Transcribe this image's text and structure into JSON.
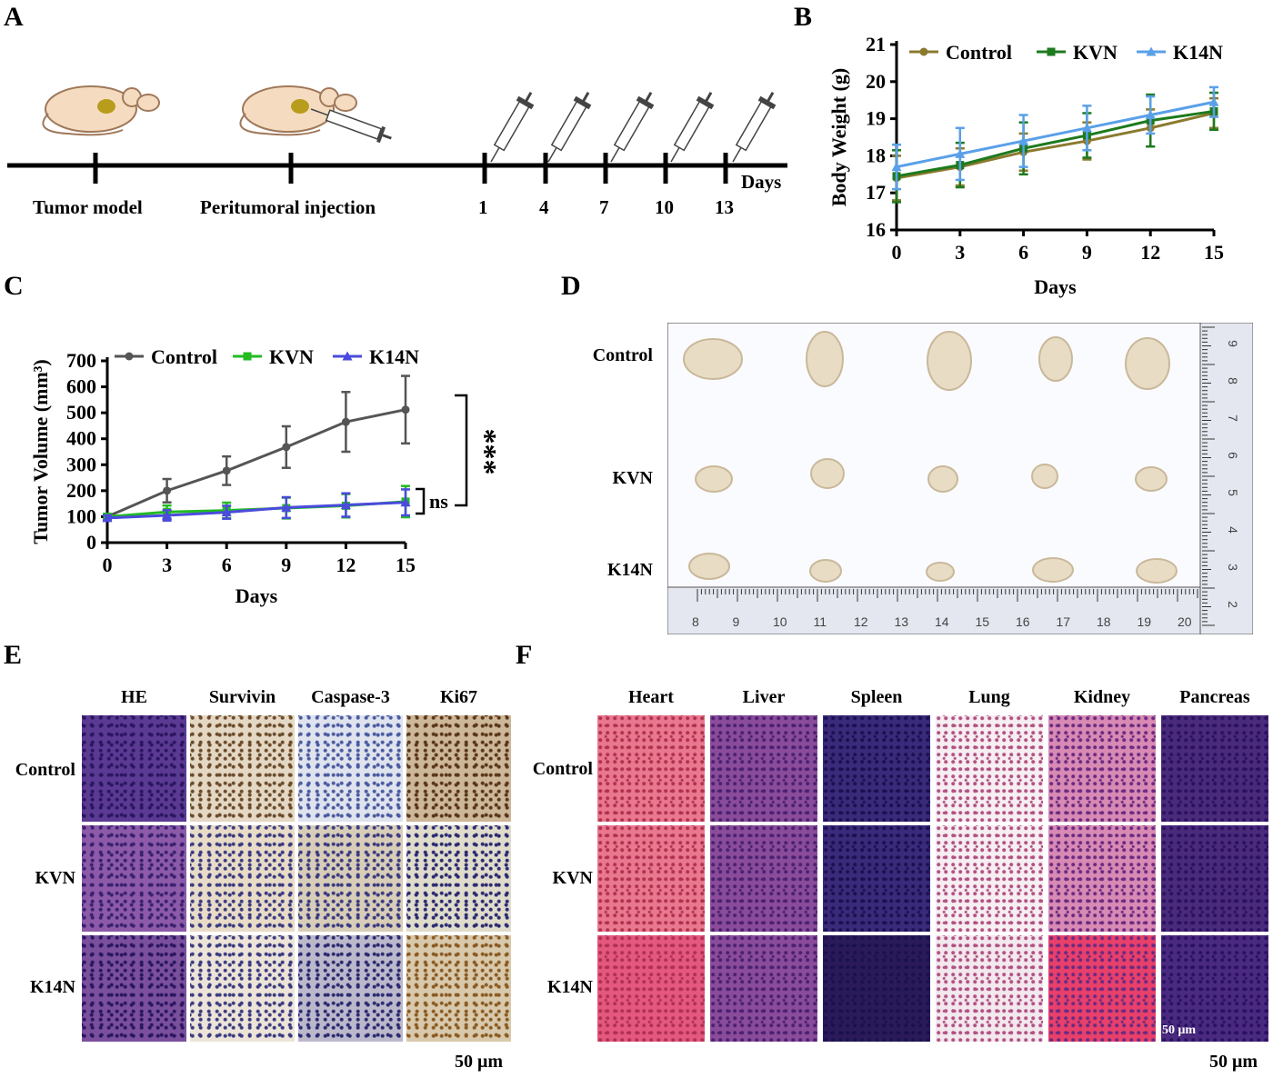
{
  "panels": {
    "A": "A",
    "B": "B",
    "C": "C",
    "D": "D",
    "E": "E",
    "F": "F"
  },
  "panelA": {
    "stages": [
      "Tumor model",
      "Peritumoral injection"
    ],
    "days": [
      "1",
      "4",
      "7",
      "10",
      "13"
    ],
    "axis_unit": "Days"
  },
  "colors": {
    "control_B": "#8b7a2e",
    "kvn_B": "#1e7a1e",
    "k14n_B": "#5aa0e8",
    "control_C": "#555555",
    "kvn_C": "#22bb22",
    "k14n_C": "#4b4bdc",
    "he": "#6a3fa0",
    "ihc_bg": "#e8dccb",
    "heart": "#e06080"
  },
  "chart_data": [
    {
      "type": "line",
      "panel": "B",
      "xlabel": "Days",
      "ylabel": "Body Weight (g)",
      "x": [
        0,
        3,
        6,
        9,
        12,
        15
      ],
      "xticks": [
        "0",
        "3",
        "6",
        "9",
        "12",
        "15"
      ],
      "yticks": [
        "16",
        "17",
        "18",
        "19",
        "20",
        "21"
      ],
      "ylim": [
        16,
        21
      ],
      "xlim": [
        0,
        15
      ],
      "legend_position": "top",
      "series": [
        {
          "name": "Control",
          "marker": "circle",
          "values": [
            17.4,
            17.7,
            18.1,
            18.4,
            18.75,
            19.15
          ],
          "errors": [
            0.6,
            0.5,
            0.5,
            0.5,
            0.5,
            0.4
          ]
        },
        {
          "name": "KVN",
          "marker": "square",
          "values": [
            17.45,
            17.75,
            18.2,
            18.55,
            18.95,
            19.2
          ],
          "errors": [
            0.7,
            0.6,
            0.7,
            0.6,
            0.7,
            0.5
          ]
        },
        {
          "name": "K14N",
          "marker": "triangle",
          "values": [
            17.7,
            18.05,
            18.4,
            18.75,
            19.1,
            19.45
          ],
          "errors": [
            0.6,
            0.7,
            0.7,
            0.6,
            0.5,
            0.4
          ]
        }
      ]
    },
    {
      "type": "line",
      "panel": "C",
      "xlabel": "Days",
      "ylabel": "Tumor Volume (mm³)",
      "x": [
        0,
        3,
        6,
        9,
        12,
        15
      ],
      "xticks": [
        "0",
        "3",
        "6",
        "9",
        "12",
        "15"
      ],
      "yticks": [
        "0",
        "100",
        "200",
        "300",
        "400",
        "500",
        "600",
        "700"
      ],
      "ylim": [
        0,
        700
      ],
      "xlim": [
        0,
        15
      ],
      "legend_position": "top",
      "significance": [
        {
          "label": "***"
        },
        {
          "label": "ns"
        }
      ],
      "series": [
        {
          "name": "Control",
          "marker": "circle",
          "values": [
            100,
            200,
            277,
            368,
            465,
            512
          ],
          "errors": [
            10,
            45,
            55,
            80,
            115,
            130
          ]
        },
        {
          "name": "KVN",
          "marker": "square",
          "values": [
            100,
            118,
            124,
            133,
            142,
            158
          ],
          "errors": [
            10,
            25,
            30,
            40,
            45,
            60
          ]
        },
        {
          "name": "K14N",
          "marker": "triangle",
          "values": [
            95,
            105,
            117,
            135,
            145,
            155
          ],
          "errors": [
            10,
            20,
            25,
            40,
            45,
            50
          ]
        }
      ]
    }
  ],
  "panelD": {
    "rows": [
      "Control",
      "KVN",
      "K14N"
    ],
    "ruler_h": [
      "8",
      "9",
      "10",
      "11",
      "12",
      "13",
      "14",
      "15",
      "16",
      "17",
      "18",
      "19",
      "20"
    ],
    "ruler_v": [
      "9",
      "8",
      "7",
      "6",
      "5",
      "4",
      "3",
      "2"
    ]
  },
  "panelE": {
    "columns": [
      "HE",
      "Survivin",
      "Caspase-3",
      "Ki67"
    ],
    "rows": [
      "Control",
      "KVN",
      "K14N"
    ],
    "scale": "50 μm"
  },
  "panelF": {
    "columns": [
      "Heart",
      "Liver",
      "Spleen",
      "Lung",
      "Kidney",
      "Pancreas"
    ],
    "rows": [
      "Control",
      "KVN",
      "K14N"
    ],
    "scale_inset": "50 μm",
    "scale": "50 μm"
  }
}
